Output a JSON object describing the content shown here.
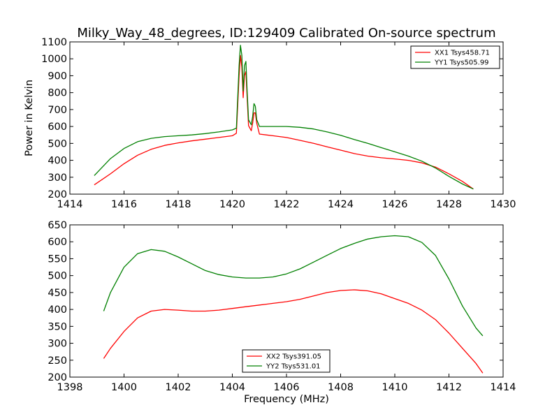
{
  "figure": {
    "title": "Milky_Way_48_degrees, ID:129409 Calibrated On-source spectrum"
  },
  "chart_data": [
    {
      "type": "line",
      "ylabel": "Power in Kelvin",
      "xlabel": "",
      "xlim": [
        1414,
        1430
      ],
      "ylim": [
        200,
        1100
      ],
      "xticks": [
        "1414",
        "1416",
        "1418",
        "1420",
        "1422",
        "1424",
        "1426",
        "1428",
        "1430"
      ],
      "yticks": [
        "200",
        "300",
        "400",
        "500",
        "600",
        "700",
        "800",
        "900",
        "1000",
        "1100"
      ],
      "legend_position": "top-right",
      "series": [
        {
          "name": "XX1 Tsys458.71",
          "color": "#ff0000",
          "x": [
            1414.9,
            1415.5,
            1416,
            1416.5,
            1417,
            1417.5,
            1418,
            1418.5,
            1419,
            1419.5,
            1420,
            1420.15,
            1420.25,
            1420.3,
            1420.35,
            1420.4,
            1420.45,
            1420.5,
            1420.55,
            1420.6,
            1420.7,
            1420.75,
            1420.8,
            1420.85,
            1420.9,
            1421,
            1421.5,
            1422,
            1422.5,
            1423,
            1423.5,
            1424,
            1424.5,
            1425,
            1425.5,
            1426,
            1426.5,
            1427,
            1427.5,
            1428,
            1428.5,
            1428.9
          ],
          "values": [
            255,
            320,
            380,
            430,
            465,
            488,
            503,
            515,
            525,
            535,
            545,
            560,
            900,
            1020,
            950,
            770,
            900,
            925,
            760,
            605,
            575,
            620,
            680,
            680,
            620,
            555,
            545,
            535,
            518,
            500,
            480,
            460,
            440,
            425,
            415,
            408,
            400,
            385,
            360,
            320,
            275,
            230
          ]
        },
        {
          "name": "YY1 Tsys505.99",
          "color": "#008000",
          "x": [
            1414.9,
            1415.5,
            1416,
            1416.5,
            1417,
            1417.5,
            1418,
            1418.5,
            1419,
            1419.5,
            1420,
            1420.15,
            1420.25,
            1420.3,
            1420.35,
            1420.4,
            1420.45,
            1420.5,
            1420.55,
            1420.6,
            1420.7,
            1420.75,
            1420.8,
            1420.85,
            1420.9,
            1421,
            1421.5,
            1422,
            1422.5,
            1423,
            1423.5,
            1424,
            1424.5,
            1425,
            1425.5,
            1426,
            1426.5,
            1427,
            1427.5,
            1428,
            1428.5,
            1428.9
          ],
          "values": [
            310,
            410,
            470,
            510,
            530,
            540,
            545,
            550,
            558,
            568,
            580,
            590,
            960,
            1080,
            1020,
            810,
            960,
            985,
            800,
            640,
            610,
            660,
            735,
            720,
            640,
            600,
            600,
            600,
            595,
            585,
            568,
            548,
            523,
            500,
            475,
            450,
            425,
            395,
            355,
            305,
            260,
            230
          ]
        }
      ]
    },
    {
      "type": "line",
      "ylabel": "",
      "xlabel": "Frequency (MHz)",
      "xlim": [
        1398,
        1414
      ],
      "ylim": [
        200,
        650
      ],
      "xticks": [
        "1398",
        "1400",
        "1402",
        "1404",
        "1406",
        "1408",
        "1410",
        "1412",
        "1414"
      ],
      "yticks": [
        "200",
        "250",
        "300",
        "350",
        "400",
        "450",
        "500",
        "550",
        "600",
        "650"
      ],
      "legend_position": "bottom-center",
      "series": [
        {
          "name": "XX2 Tsys391.05",
          "color": "#ff0000",
          "x": [
            1399.25,
            1399.5,
            1400,
            1400.5,
            1401,
            1401.5,
            1402,
            1402.5,
            1403,
            1403.5,
            1404,
            1404.5,
            1405,
            1405.5,
            1406,
            1406.5,
            1407,
            1407.5,
            1408,
            1408.5,
            1409,
            1409.5,
            1410,
            1410.5,
            1411,
            1411.5,
            1412,
            1412.5,
            1413,
            1413.25
          ],
          "values": [
            255,
            285,
            335,
            375,
            395,
            400,
            398,
            395,
            395,
            398,
            403,
            408,
            413,
            418,
            423,
            430,
            440,
            450,
            456,
            458,
            455,
            446,
            432,
            418,
            398,
            370,
            330,
            285,
            240,
            212
          ]
        },
        {
          "name": "YY2 Tsys531.01",
          "color": "#008000",
          "x": [
            1399.25,
            1399.5,
            1400,
            1400.5,
            1401,
            1401.5,
            1402,
            1402.5,
            1403,
            1403.5,
            1404,
            1404.5,
            1405,
            1405.5,
            1406,
            1406.5,
            1407,
            1407.5,
            1408,
            1408.5,
            1409,
            1409.5,
            1410,
            1410.5,
            1411,
            1411.5,
            1412,
            1412.5,
            1413,
            1413.25
          ],
          "values": [
            395,
            450,
            525,
            565,
            577,
            572,
            555,
            535,
            515,
            503,
            496,
            493,
            493,
            496,
            505,
            520,
            540,
            560,
            580,
            595,
            608,
            615,
            618,
            615,
            598,
            560,
            490,
            410,
            345,
            322
          ]
        }
      ]
    }
  ]
}
